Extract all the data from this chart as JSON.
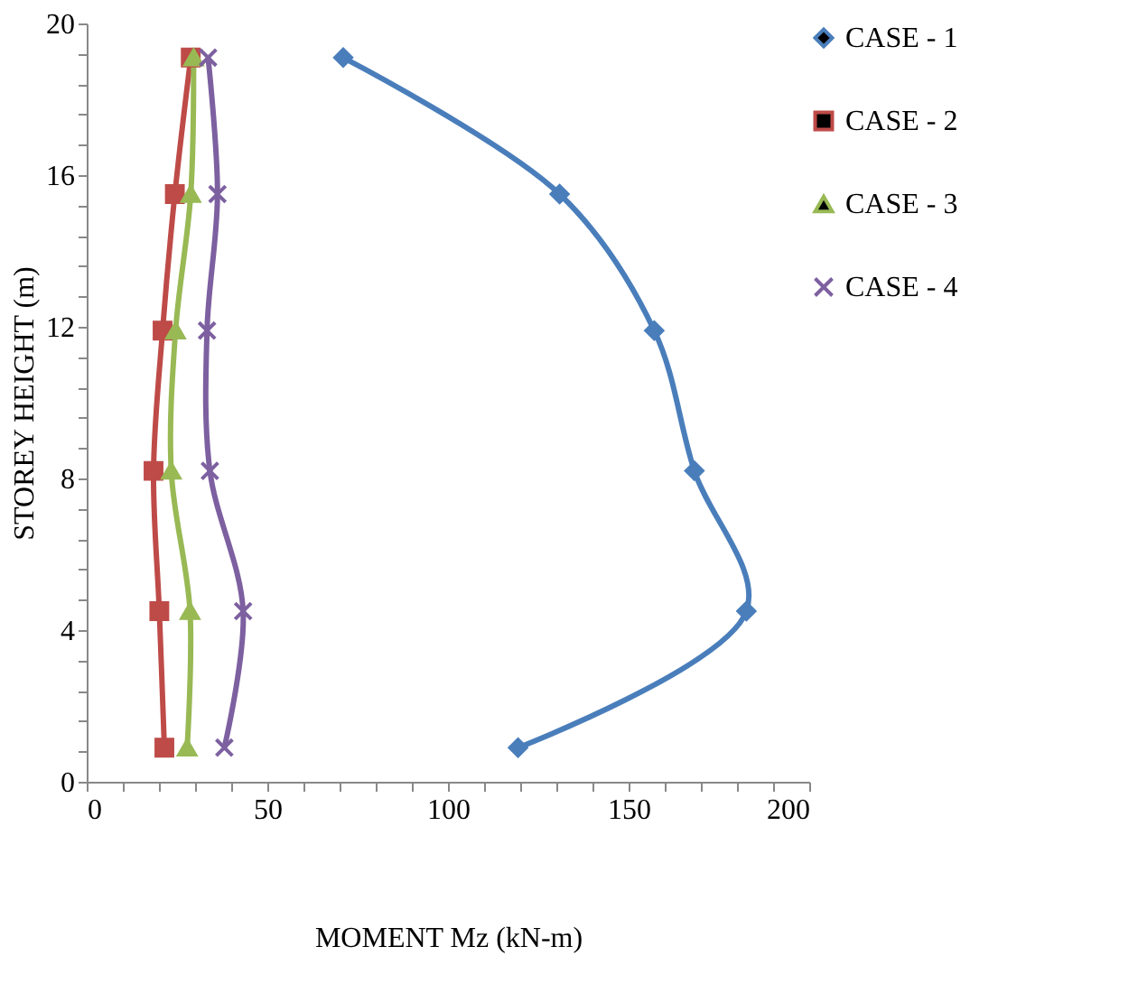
{
  "chart_data": {
    "type": "line",
    "xlabel": "MOMENT  Mz (kN-m)",
    "ylabel": "STOREY HEIGHT (m)",
    "xlim": [
      0,
      200
    ],
    "xticks": [
      0,
      {
        "value": 10,
        "label": null
      },
      {
        "value": 20,
        "label": null
      },
      {
        "value": 30,
        "label": null
      },
      {
        "value": 40,
        "label": null
      },
      50,
      {
        "value": 60,
        "label": null
      },
      {
        "value": 70,
        "label": null
      },
      {
        "value": 80,
        "label": null
      },
      {
        "value": 90,
        "label": null
      },
      100,
      {
        "value": 110,
        "label": null
      },
      {
        "value": 120,
        "label": null
      },
      {
        "value": 130,
        "label": null
      },
      {
        "value": 140,
        "label": null
      },
      150,
      {
        "value": 160,
        "label": null
      },
      {
        "value": 170,
        "label": null
      },
      {
        "value": 180,
        "label": null
      },
      {
        "value": 190,
        "label": null
      },
      200
    ],
    "ylim": [
      0,
      20
    ],
    "yticks": [
      0,
      {
        "value": 0.8,
        "label": null
      },
      {
        "value": 1.6,
        "label": null
      },
      {
        "value": 2.4,
        "label": null
      },
      {
        "value": 3.2,
        "label": null
      },
      4,
      {
        "value": 4.8,
        "label": null
      },
      {
        "value": 5.6,
        "label": null
      },
      {
        "value": 6.4,
        "label": null
      },
      {
        "value": 7.2,
        "label": null
      },
      8,
      {
        "value": 8.8,
        "label": null
      },
      {
        "value": 9.6,
        "label": null
      },
      {
        "value": 10.4,
        "label": null
      },
      {
        "value": 11.2,
        "label": null
      },
      12,
      {
        "value": 12.8,
        "label": null
      },
      {
        "value": 13.6,
        "label": null
      },
      {
        "value": 14.4,
        "label": null
      },
      {
        "value": 15.2,
        "label": null
      },
      16,
      {
        "value": 16.8,
        "label": null
      },
      {
        "value": 17.6,
        "label": null
      },
      {
        "value": 18.4,
        "label": null
      },
      {
        "value": 19.2,
        "label": null
      },
      20
    ],
    "grid": false,
    "legend": "top right",
    "series": [
      {
        "name": "CASE - 1",
        "color": "#4a7ebb",
        "marker": "diamond",
        "x": [
          119.4,
          182.6,
          168.2,
          157.1,
          130.9,
          71
        ],
        "values": [
          0.9,
          4.5,
          8.2,
          11.9,
          15.5,
          19.1
        ]
      },
      {
        "name": "CASE - 2",
        "color": "#be4b48",
        "marker": "square",
        "x": [
          21.5,
          20.1,
          18.5,
          21,
          24.4,
          28.8
        ],
        "values": [
          0.9,
          4.5,
          8.2,
          11.9,
          15.5,
          19.1
        ]
      },
      {
        "name": "CASE - 3",
        "color": "#98b954",
        "marker": "triangle",
        "x": [
          27.8,
          28.6,
          23.4,
          24.6,
          28.8,
          29.6
        ],
        "values": [
          0.9,
          4.5,
          8.2,
          11.9,
          15.5,
          19.1
        ]
      },
      {
        "name": "CASE - 4",
        "color": "#7d60a0",
        "marker": "cross",
        "x": [
          38.1,
          43.3,
          34.1,
          33.3,
          36.2,
          33.6
        ],
        "values": [
          0.9,
          4.5,
          8.2,
          11.9,
          15.5,
          19.1
        ]
      }
    ]
  }
}
